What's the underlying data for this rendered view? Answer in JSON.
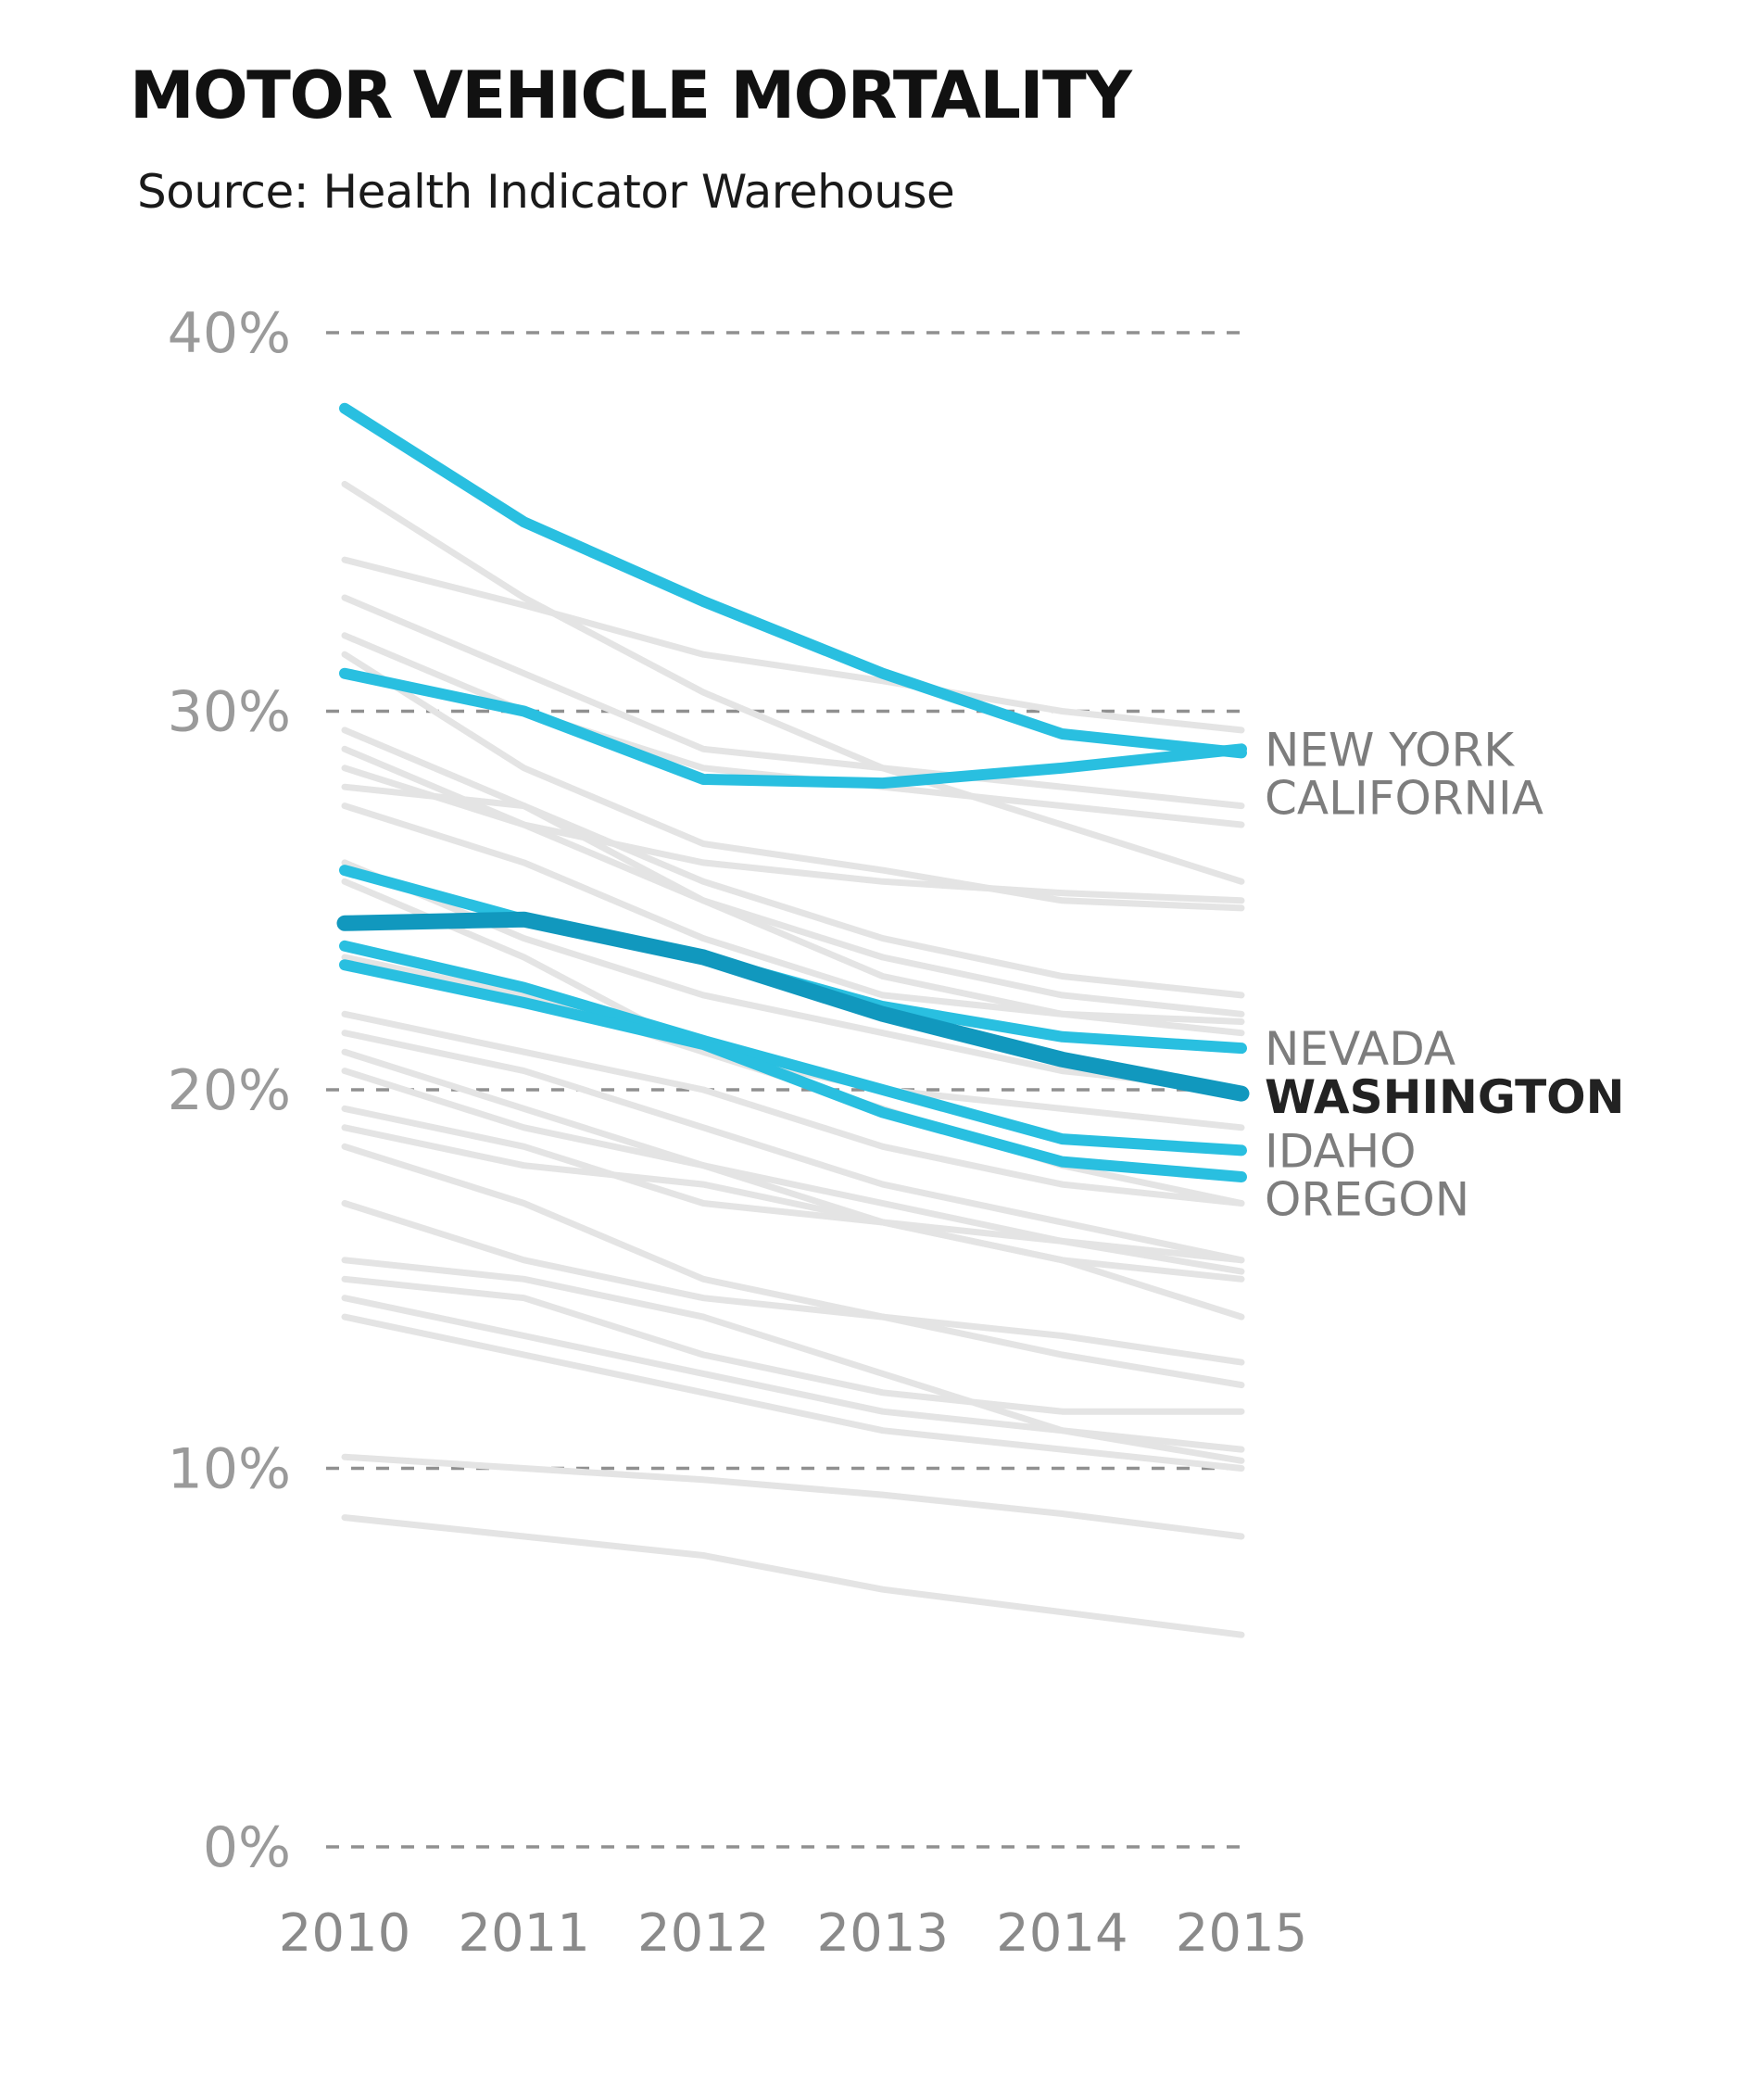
{
  "chart_data": {
    "type": "line",
    "title": "MOTOR VEHICLE MORTALITY",
    "subtitle": "Source: Health Indicator Warehouse",
    "xlabel": "",
    "ylabel": "",
    "x": [
      "2010",
      "2011",
      "2012",
      "2013",
      "2014",
      "2015"
    ],
    "ylim": [
      0,
      40
    ],
    "yticks": [
      0,
      10,
      20,
      30,
      40
    ],
    "ytick_labels": [
      "0%",
      "10%",
      "20%",
      "30%",
      "40%"
    ],
    "grid": "dashed horizontal",
    "colors": {
      "highlight": "#29bfe0",
      "emphasis": "#1198be",
      "background": "#e4e4e4",
      "grid": "#909090"
    },
    "background_series": [
      {
        "values": [
          36.0,
          33.0,
          30.5,
          28.5,
          27.0,
          25.5
        ]
      },
      {
        "values": [
          34.0,
          32.8,
          31.5,
          30.8,
          30.0,
          29.5
        ]
      },
      {
        "values": [
          33.0,
          31.0,
          29.0,
          28.5,
          28.0,
          27.5
        ]
      },
      {
        "values": [
          32.0,
          30.0,
          28.5,
          28.0,
          27.5,
          27.0
        ]
      },
      {
        "values": [
          31.5,
          28.5,
          26.5,
          25.8,
          25.0,
          24.8
        ]
      },
      {
        "values": [
          29.5,
          27.5,
          25.5,
          24.0,
          23.0,
          22.5
        ]
      },
      {
        "values": [
          29.0,
          27.0,
          26.0,
          25.5,
          25.2,
          25.0
        ]
      },
      {
        "values": [
          28.5,
          27.0,
          25.0,
          23.5,
          22.5,
          22.0
        ]
      },
      {
        "values": [
          28.0,
          27.5,
          25.0,
          23.0,
          22.0,
          21.5
        ]
      },
      {
        "values": [
          27.5,
          26.0,
          24.0,
          22.5,
          22.0,
          21.8
        ]
      },
      {
        "values": [
          26.0,
          24.0,
          22.5,
          21.5,
          20.5,
          20.0
        ]
      },
      {
        "values": [
          25.5,
          23.5,
          21.0,
          20.0,
          19.5,
          19.0
        ]
      },
      {
        "values": [
          23.5,
          22.5,
          21.0,
          19.5,
          18.0,
          17.0
        ]
      },
      {
        "values": [
          22.0,
          21.0,
          20.0,
          18.5,
          17.5,
          17.0
        ]
      },
      {
        "values": [
          21.5,
          20.5,
          19.0,
          17.5,
          16.5,
          15.5
        ]
      },
      {
        "values": [
          21.0,
          19.5,
          18.0,
          16.5,
          15.5,
          15.0
        ]
      },
      {
        "values": [
          20.5,
          19.0,
          18.0,
          17.0,
          16.0,
          15.5
        ]
      },
      {
        "values": [
          19.5,
          18.5,
          17.0,
          16.5,
          15.5,
          14.0
        ]
      },
      {
        "values": [
          19.0,
          18.0,
          17.5,
          16.5,
          16.0,
          15.2
        ]
      },
      {
        "values": [
          18.5,
          17.0,
          15.0,
          14.0,
          13.0,
          12.2
        ]
      },
      {
        "values": [
          17.0,
          15.5,
          14.5,
          14.0,
          13.5,
          12.8
        ]
      },
      {
        "values": [
          15.5,
          15.0,
          14.0,
          12.5,
          11.0,
          10.2
        ]
      },
      {
        "values": [
          15.0,
          14.5,
          13.0,
          12.0,
          11.5,
          11.5
        ]
      },
      {
        "values": [
          14.5,
          13.5,
          12.5,
          11.5,
          11.0,
          10.5
        ]
      },
      {
        "values": [
          14.0,
          13.0,
          12.0,
          11.0,
          10.5,
          10.0
        ]
      },
      {
        "values": [
          10.3,
          10.0,
          9.7,
          9.3,
          8.8,
          8.2
        ]
      },
      {
        "values": [
          8.7,
          8.2,
          7.7,
          6.8,
          6.2,
          5.6
        ]
      }
    ],
    "series": [
      {
        "name": "CALIFORNIA",
        "values": [
          38.0,
          35.0,
          32.9,
          31.0,
          29.4,
          28.9
        ],
        "emphasis": false
      },
      {
        "name": "NEW YORK",
        "values": [
          31.0,
          30.0,
          28.2,
          28.1,
          28.5,
          29.0
        ],
        "emphasis": false
      },
      {
        "name": "NEVADA",
        "values": [
          25.8,
          24.5,
          23.5,
          22.2,
          21.4,
          21.1
        ],
        "emphasis": false
      },
      {
        "name": "WASHINGTON",
        "values": [
          24.4,
          24.5,
          23.5,
          22.0,
          20.8,
          19.9
        ],
        "emphasis": true
      },
      {
        "name": "IDAHO",
        "values": [
          23.8,
          22.7,
          21.3,
          20.0,
          18.7,
          18.4
        ],
        "emphasis": false
      },
      {
        "name": "OREGON",
        "values": [
          23.3,
          22.3,
          21.2,
          19.4,
          18.1,
          17.7
        ],
        "emphasis": false
      }
    ]
  }
}
